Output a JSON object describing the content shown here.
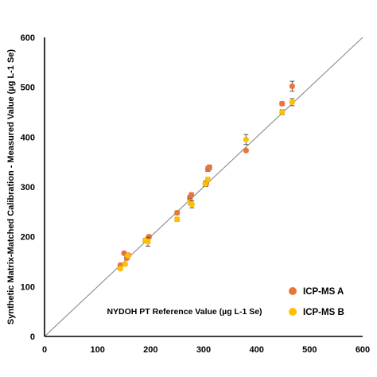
{
  "chart_data": {
    "type": "scatter",
    "xlabel": "NYDOH PT Reference Value (µg L-1 Se)",
    "ylabel": "Synthetic Matrix-Matched Calibration - Measured Value (µg L-1 Se)",
    "xlim": [
      0,
      600
    ],
    "ylim": [
      0,
      600
    ],
    "xticks": [
      "0",
      "100",
      "200",
      "300",
      "400",
      "500",
      "600"
    ],
    "yticks": [
      "0",
      "100",
      "200",
      "300",
      "400",
      "500",
      "600"
    ],
    "grid": false,
    "legend_position": "bottom-right",
    "reference_line": "y = x",
    "series": [
      {
        "name": "ICP-MS A",
        "color": "#E8763A",
        "points": [
          {
            "x": 143,
            "y": 143,
            "err": 3
          },
          {
            "x": 150,
            "y": 167,
            "err": 3
          },
          {
            "x": 155,
            "y": 157,
            "err": 3
          },
          {
            "x": 158,
            "y": 163,
            "err": 3
          },
          {
            "x": 192,
            "y": 192,
            "err": 4
          },
          {
            "x": 197,
            "y": 200,
            "err": 4
          },
          {
            "x": 250,
            "y": 248,
            "err": 4
          },
          {
            "x": 274,
            "y": 278,
            "err": 5
          },
          {
            "x": 277,
            "y": 284,
            "err": 4
          },
          {
            "x": 305,
            "y": 307,
            "err": 5
          },
          {
            "x": 308,
            "y": 336,
            "err": 5
          },
          {
            "x": 311,
            "y": 339,
            "err": 5
          },
          {
            "x": 380,
            "y": 373,
            "err": 3
          },
          {
            "x": 448,
            "y": 467,
            "err": 4
          },
          {
            "x": 467,
            "y": 502,
            "err": 10
          }
        ]
      },
      {
        "name": "ICP-MS B",
        "color": "#FFC000",
        "points": [
          {
            "x": 143,
            "y": 136,
            "err": 3
          },
          {
            "x": 152,
            "y": 145,
            "err": 3
          },
          {
            "x": 157,
            "y": 162,
            "err": 4
          },
          {
            "x": 190,
            "y": 193,
            "err": 4
          },
          {
            "x": 195,
            "y": 190,
            "err": 9
          },
          {
            "x": 250,
            "y": 235,
            "err": 4
          },
          {
            "x": 275,
            "y": 270,
            "err": 6
          },
          {
            "x": 278,
            "y": 265,
            "err": 7
          },
          {
            "x": 303,
            "y": 306,
            "err": 5
          },
          {
            "x": 308,
            "y": 315,
            "err": 4
          },
          {
            "x": 380,
            "y": 395,
            "err": 10
          },
          {
            "x": 448,
            "y": 450,
            "err": 5
          },
          {
            "x": 467,
            "y": 470,
            "err": 7
          }
        ]
      }
    ]
  }
}
